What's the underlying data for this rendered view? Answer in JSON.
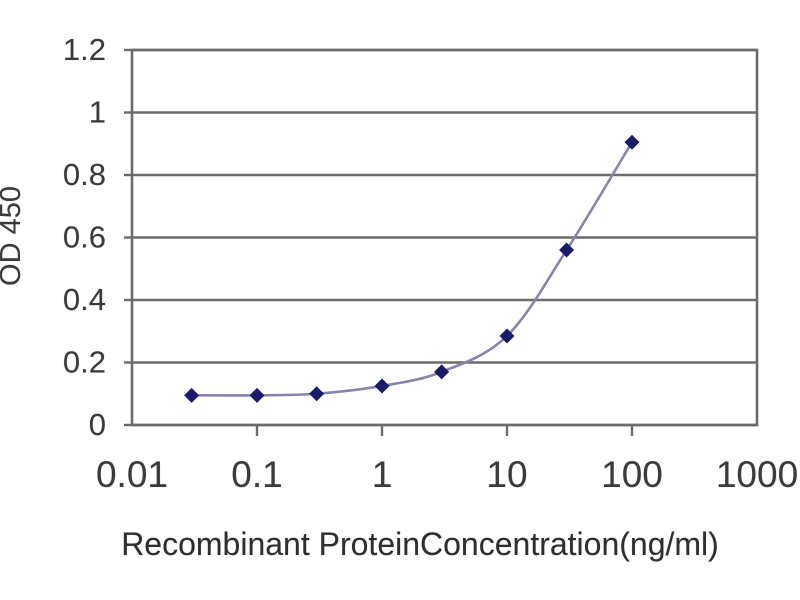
{
  "figure": {
    "background": "#ffffff",
    "description": "ELISA standard curve line chart"
  },
  "chart_data": {
    "type": "line",
    "title": "",
    "xlabel": "Recombinant ProteinConcentration(ng/ml)",
    "ylabel": "OD 450",
    "x_scale": "log",
    "xlim": [
      0.01,
      1000
    ],
    "ylim": [
      0,
      1.2
    ],
    "x_ticks": [
      0.01,
      0.1,
      1,
      10,
      100,
      1000
    ],
    "x_tick_labels": [
      "0.01",
      "0.1",
      "1",
      "10",
      "100",
      "1000"
    ],
    "y_ticks": [
      0,
      0.2,
      0.4,
      0.6,
      0.8,
      1,
      1.2
    ],
    "y_tick_labels": [
      "0",
      "0.2",
      "0.4",
      "0.6",
      "0.8",
      "1",
      "1.2"
    ],
    "grid": "horizontal-only",
    "legend": "none",
    "series": [
      {
        "name": "OD 450",
        "x": [
          0.03,
          0.1,
          0.3,
          1,
          3,
          10,
          30,
          100
        ],
        "y": [
          0.095,
          0.095,
          0.1,
          0.125,
          0.17,
          0.285,
          0.56,
          0.905
        ],
        "marker": "diamond",
        "line_style": "smooth"
      }
    ],
    "colors": {
      "line": "#8585ad",
      "marker": "#1b1b6b",
      "grid": "#6b6b6b",
      "axis": "#6b6b6b",
      "tick_label": "#3b3b3b",
      "title": "#2e2e2e",
      "background": "#ffffff"
    }
  }
}
